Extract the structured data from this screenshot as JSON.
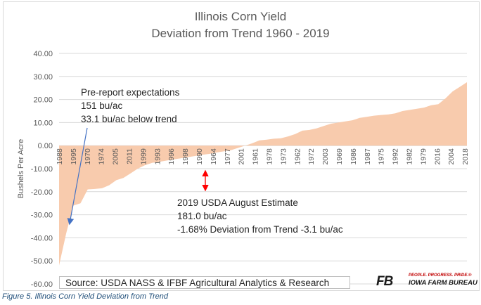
{
  "chart_data": {
    "type": "area",
    "title": "Illinois Corn Yield",
    "subtitle": "Deviation from Trend 1960 - 2019",
    "ylabel": "Bushels Per Acre",
    "xlabel": "",
    "ylim": [
      -60,
      40
    ],
    "yticks": [
      "40.00",
      "30.00",
      "20.00",
      "10.00",
      "0.00",
      "-10.00",
      "-20.00",
      "-30.00",
      "-40.00",
      "-50.00",
      "-60.00"
    ],
    "grid": true,
    "fill_color": "#f8cbad",
    "categories": [
      "1988",
      "1983",
      "1995",
      "1993",
      "1970",
      "1964",
      "1974",
      "1991",
      "2005",
      "2002",
      "2011",
      "2009",
      "1999",
      "1966",
      "1993b",
      "1977",
      "1996",
      "1980",
      "1998",
      "1968",
      "1990",
      "1976",
      "1964b",
      "1965",
      "1977b",
      "1963",
      "2001",
      "2000",
      "1961",
      "1979",
      "1978",
      "1997",
      "1973",
      "1971",
      "1962",
      "1985",
      "1972",
      "1994",
      "2003",
      "2010",
      "1969",
      "1967",
      "1986",
      "2008",
      "1987",
      "1989",
      "1975",
      "1984",
      "1992",
      "1982",
      "1979b",
      "2006",
      "2016",
      "2007",
      "2004",
      "2015",
      "2018",
      "2014"
    ],
    "x_labels": [
      "1988",
      "1995",
      "1970",
      "1974",
      "2005",
      "2011",
      "1999",
      "1993",
      "1996",
      "1998",
      "1990",
      "1964",
      "1977",
      "2001",
      "1961",
      "1978",
      "1973",
      "1962",
      "1972",
      "2003",
      "1969",
      "1986",
      "1987",
      "1975",
      "1992",
      "1982",
      "1979",
      "2016",
      "2004",
      "2018"
    ],
    "values": [
      -52,
      -38,
      -26,
      -25,
      -19,
      -18.8,
      -18.5,
      -17.2,
      -15,
      -14,
      -12,
      -10,
      -8.5,
      -7.5,
      -7,
      -6.5,
      -6,
      -5.5,
      -5,
      -4.5,
      -4,
      -3.6,
      -3,
      -2.5,
      -2,
      -1,
      0,
      1,
      2.3,
      2.6,
      3,
      3.2,
      4,
      5,
      6.5,
      6.8,
      7.5,
      8.5,
      9.5,
      10,
      10.5,
      11,
      12,
      12.5,
      13,
      13.3,
      13.5,
      14,
      15,
      15.5,
      16,
      16.5,
      17.5,
      18,
      20.5,
      23.5,
      25.5,
      27.5
    ],
    "annotations": {
      "pre_report": [
        "Pre-report expectations",
        "151 bu/ac",
        "33.1 bu/ac below trend"
      ],
      "usda": [
        "2019 USDA August Estimate",
        "181.0 bu/ac",
        "-1.68% Deviation from Trend  -3.1 bu/ac"
      ]
    }
  },
  "source": "Source: USDA NASS & IFBF Agricultural Analytics & Research",
  "caption": "Figure 5. Illinois Corn Yield Deviation from Trend",
  "logo": {
    "mark": "FB",
    "tagline": "PEOPLE. PROGRESS. PRIDE.®",
    "name": "IOWA FARM BUREAU"
  },
  "colors": {
    "area": "#f8cbad",
    "arrow_blue": "#4472c4",
    "arrow_red": "#ff0000",
    "axis_text": "#595959",
    "grid": "#d9d9d9"
  }
}
